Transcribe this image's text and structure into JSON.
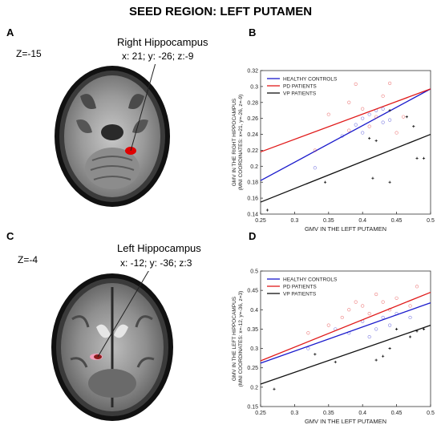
{
  "figure": {
    "title": "SEED REGION: LEFT PUTAMEN",
    "panels": {
      "A": {
        "letter": "A",
        "z_label": "Z=-15",
        "roi_name": "Right Hippocampus",
        "roi_coords": "x: 21; y: -26; z:-9"
      },
      "B": {
        "letter": "B"
      },
      "C": {
        "letter": "C",
        "z_label": "Z=-4",
        "roi_name": "Left Hippocampus",
        "roi_coords": "x: -12; y: -36; z:3"
      },
      "D": {
        "letter": "D"
      }
    }
  },
  "chart_data": [
    {
      "type": "scatter",
      "panel": "B",
      "xlabel": "GMV IN THE LEFT PUTAMEN",
      "ylabel_line1": "GMV IN THE RIGHT HIPPOCAMPUS",
      "ylabel_line2": "(MNI COORDINATES: x=21, y=-26, z=-9)",
      "xlim": [
        0.25,
        0.5
      ],
      "ylim": [
        0.14,
        0.32
      ],
      "xticks": [
        "0.25",
        "0.3",
        "0.35",
        "0.4",
        "0.45",
        "0.5"
      ],
      "yticks": [
        "0.14",
        "0.16",
        "0.18",
        "0.2",
        "0.22",
        "0.24",
        "0.26",
        "0.28",
        "0.3",
        "0.32"
      ],
      "legend_position": "top-left",
      "series": [
        {
          "name": "HEALTHY CONTROLS",
          "color": "#1a1acc",
          "marker": "circle",
          "points": [
            [
              0.33,
              0.198
            ],
            [
              0.37,
              0.238
            ],
            [
              0.39,
              0.252
            ],
            [
              0.4,
              0.26
            ],
            [
              0.41,
              0.265
            ],
            [
              0.42,
              0.27
            ],
            [
              0.43,
              0.255
            ],
            [
              0.44,
              0.258
            ],
            [
              0.43,
              0.272
            ],
            [
              0.4,
              0.242
            ]
          ],
          "fit": [
            [
              0.25,
              0.182
            ],
            [
              0.5,
              0.297
            ]
          ]
        },
        {
          "name": "PD PATIENTS",
          "color": "#e01a1a",
          "marker": "circle",
          "points": [
            [
              0.33,
              0.22
            ],
            [
              0.35,
              0.265
            ],
            [
              0.38,
              0.28
            ],
            [
              0.39,
              0.303
            ],
            [
              0.4,
              0.272
            ],
            [
              0.41,
              0.25
            ],
            [
              0.42,
              0.262
            ],
            [
              0.43,
              0.288
            ],
            [
              0.44,
              0.304
            ],
            [
              0.45,
              0.242
            ],
            [
              0.46,
              0.262
            ],
            [
              0.38,
              0.245
            ]
          ],
          "fit": [
            [
              0.25,
              0.218
            ],
            [
              0.5,
              0.297
            ]
          ]
        },
        {
          "name": "VP PATIENTS",
          "color": "#111111",
          "marker": "plus",
          "points": [
            [
              0.26,
              0.145
            ],
            [
              0.345,
              0.18
            ],
            [
              0.41,
              0.235
            ],
            [
              0.415,
              0.185
            ],
            [
              0.42,
              0.232
            ],
            [
              0.44,
              0.18
            ],
            [
              0.44,
              0.27
            ],
            [
              0.465,
              0.262
            ],
            [
              0.475,
              0.25
            ],
            [
              0.48,
              0.21
            ],
            [
              0.49,
              0.21
            ]
          ],
          "fit": [
            [
              0.25,
              0.155
            ],
            [
              0.5,
              0.24
            ]
          ]
        }
      ]
    },
    {
      "type": "scatter",
      "panel": "D",
      "xlabel": "GMV IN THE LEFT PUTAMEN",
      "ylabel_line1": "GMV IN THE LEFT HIPPOCAMPUS",
      "ylabel_line2": "(MNI COORDINATES: x=-12, y=-36, z=3)",
      "xlim": [
        0.25,
        0.5
      ],
      "ylim": [
        0.15,
        0.5
      ],
      "xticks": [
        "0.25",
        "0.3",
        "0.35",
        "0.4",
        "0.45",
        "0.5"
      ],
      "yticks": [
        "0.15",
        "0.2",
        "0.25",
        "0.3",
        "0.35",
        "0.4",
        "0.45",
        "0.5"
      ],
      "legend_position": "top-left",
      "series": [
        {
          "name": "HEALTHY CONTROLS",
          "color": "#1a1acc",
          "marker": "circle",
          "points": [
            [
              0.32,
              0.3
            ],
            [
              0.36,
              0.35
            ],
            [
              0.38,
              0.34
            ],
            [
              0.4,
              0.37
            ],
            [
              0.41,
              0.33
            ],
            [
              0.42,
              0.35
            ],
            [
              0.43,
              0.38
            ],
            [
              0.44,
              0.36
            ],
            [
              0.45,
              0.39
            ],
            [
              0.47,
              0.38
            ]
          ],
          "fit": [
            [
              0.25,
              0.262
            ],
            [
              0.5,
              0.418
            ]
          ]
        },
        {
          "name": "PD PATIENTS",
          "color": "#e01a1a",
          "marker": "circle",
          "points": [
            [
              0.32,
              0.34
            ],
            [
              0.37,
              0.38
            ],
            [
              0.38,
              0.4
            ],
            [
              0.39,
              0.42
            ],
            [
              0.4,
              0.41
            ],
            [
              0.41,
              0.39
            ],
            [
              0.42,
              0.44
            ],
            [
              0.43,
              0.42
            ],
            [
              0.44,
              0.4
            ],
            [
              0.45,
              0.43
            ],
            [
              0.48,
              0.46
            ],
            [
              0.47,
              0.41
            ],
            [
              0.35,
              0.36
            ]
          ],
          "fit": [
            [
              0.25,
              0.268
            ],
            [
              0.5,
              0.445
            ]
          ]
        },
        {
          "name": "VP PATIENTS",
          "color": "#111111",
          "marker": "plus",
          "points": [
            [
              0.27,
              0.195
            ],
            [
              0.33,
              0.285
            ],
            [
              0.36,
              0.265
            ],
            [
              0.42,
              0.27
            ],
            [
              0.43,
              0.28
            ],
            [
              0.44,
              0.3
            ],
            [
              0.45,
              0.35
            ],
            [
              0.47,
              0.33
            ],
            [
              0.48,
              0.345
            ],
            [
              0.49,
              0.35
            ]
          ],
          "fit": [
            [
              0.25,
              0.208
            ],
            [
              0.5,
              0.36
            ]
          ]
        }
      ]
    }
  ]
}
